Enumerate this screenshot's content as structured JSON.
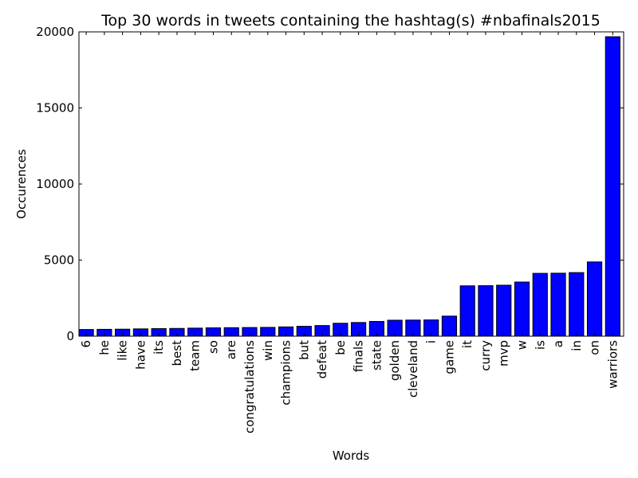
{
  "chart_data": {
    "type": "bar",
    "title": "Top 30 words in tweets containing the hashtag(s) #nbafinals2015",
    "xlabel": "Words",
    "ylabel": "Occurences",
    "ylim": [
      0,
      20000
    ],
    "yticks": [
      "0",
      "5000",
      "10000",
      "15000",
      "20000"
    ],
    "grid": false,
    "legend": "none",
    "bar_color": "#0000ff",
    "edge_color": "#000000",
    "categories": [
      "6",
      "he",
      "like",
      "have",
      "its",
      "best",
      "team",
      "so",
      "are",
      "congratulations",
      "win",
      "champions",
      "but",
      "defeat",
      "be",
      "finals",
      "state",
      "golden",
      "cleveland",
      "i",
      "game",
      "it",
      "curry",
      "mvp",
      "w",
      "is",
      "a",
      "in",
      "on",
      "warriors"
    ],
    "values": [
      440,
      450,
      460,
      480,
      500,
      510,
      530,
      550,
      560,
      570,
      580,
      610,
      650,
      700,
      850,
      900,
      970,
      1050,
      1060,
      1070,
      1320,
      3310,
      3320,
      3350,
      3560,
      4130,
      4140,
      4180,
      4880,
      19680
    ]
  }
}
